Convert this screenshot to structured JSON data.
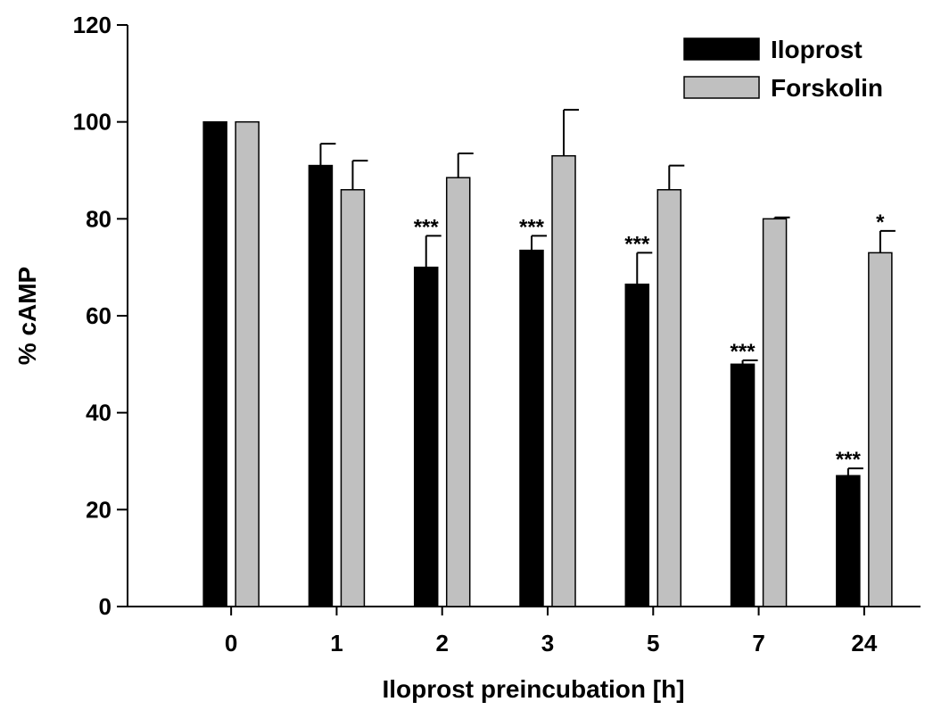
{
  "chart_data": {
    "type": "bar",
    "title": "",
    "xlabel": "Iloprost preincubation [h]",
    "ylabel": "% cAMP",
    "ylim": [
      0,
      120
    ],
    "yticks": [
      0,
      20,
      40,
      60,
      80,
      100,
      120
    ],
    "categories": [
      "0",
      "1",
      "2",
      "3",
      "5",
      "7",
      "24"
    ],
    "legend_position": "top-right",
    "series": [
      {
        "name": "Iloprost",
        "color": "#000000",
        "values": [
          100,
          91,
          70,
          73.5,
          66.5,
          50,
          27
        ],
        "errors": [
          0,
          4.5,
          6.5,
          3,
          6.5,
          0.8,
          1.5
        ],
        "annotations": [
          "",
          "",
          "***",
          "***",
          "***",
          "***",
          "***"
        ]
      },
      {
        "name": "Forskolin",
        "color": "#c0c0c0",
        "values": [
          100,
          86,
          88.5,
          93,
          86,
          80,
          73
        ],
        "errors": [
          0,
          6,
          5,
          9.5,
          5,
          0.3,
          4.5
        ],
        "annotations": [
          "",
          "",
          "",
          "",
          "",
          "",
          "*"
        ]
      }
    ]
  }
}
